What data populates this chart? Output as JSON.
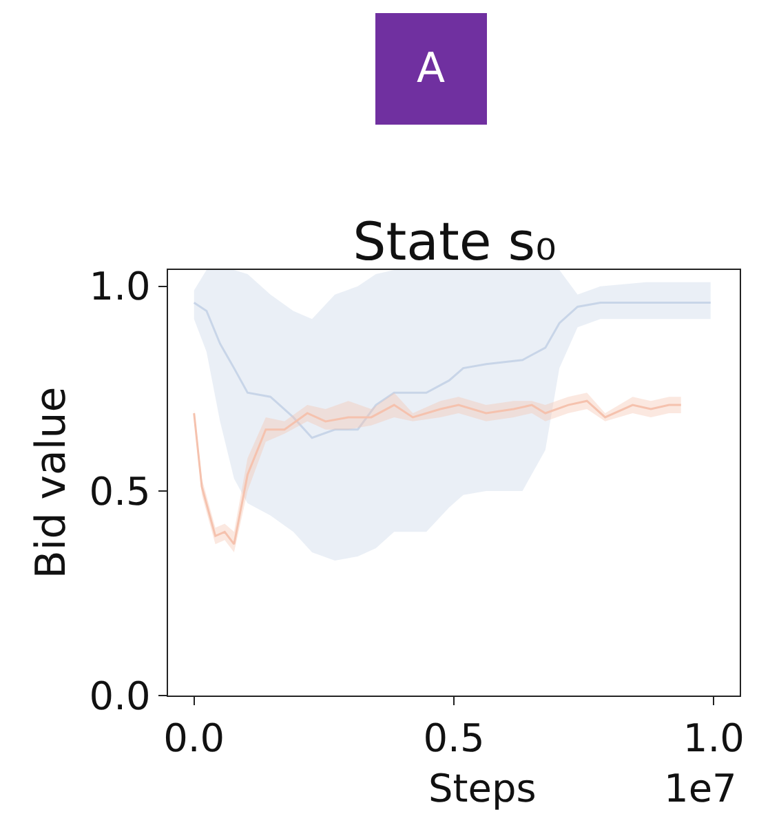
{
  "chart_data": {
    "type": "line",
    "title": "State s₀",
    "xlabel": "Steps",
    "ylabel": "Bid value",
    "annotations": [
      "A",
      "1e7"
    ],
    "xlim": [
      -0.05,
      1.05
    ],
    "ylim": [
      0,
      1.04
    ],
    "xticks": [
      {
        "value": 0,
        "label": "0.0"
      },
      {
        "value": 0.5,
        "label": "0.5"
      },
      {
        "value": 1.0,
        "label": "1.0"
      }
    ],
    "yticks": [
      {
        "value": 0,
        "label": "0.0"
      },
      {
        "value": 0.5,
        "label": "0.5"
      },
      {
        "value": 1.0,
        "label": "1.0"
      }
    ],
    "marker": "none",
    "line_style": "solid",
    "series": [
      {
        "color": "#c8d5e8",
        "x": [
          0,
          0.024,
          0.05,
          0.077,
          0.103,
          0.147,
          0.191,
          0.227,
          0.271,
          0.315,
          0.35,
          0.385,
          0.447,
          0.491,
          0.518,
          0.562,
          0.632,
          0.676,
          0.703,
          0.738,
          0.782,
          0.87,
          0.994
        ],
        "values": [
          0.96,
          0.94,
          0.86,
          0.8,
          0.74,
          0.73,
          0.68,
          0.63,
          0.65,
          0.65,
          0.71,
          0.74,
          0.74,
          0.77,
          0.8,
          0.81,
          0.82,
          0.85,
          0.91,
          0.95,
          0.96,
          0.96,
          0.96
        ],
        "upper": [
          0.99,
          1.04,
          1.04,
          1.04,
          1.03,
          0.98,
          0.94,
          0.92,
          0.98,
          1.0,
          1.03,
          1.04,
          1.04,
          1.04,
          1.04,
          1.04,
          1.04,
          1.04,
          1.04,
          0.98,
          1.0,
          1.01,
          1.01
        ],
        "lower": [
          0.92,
          0.84,
          0.67,
          0.53,
          0.47,
          0.44,
          0.4,
          0.35,
          0.33,
          0.34,
          0.36,
          0.4,
          0.4,
          0.46,
          0.49,
          0.5,
          0.5,
          0.6,
          0.8,
          0.9,
          0.92,
          0.92,
          0.92
        ]
      },
      {
        "color": "#f5c2ae",
        "x": [
          0,
          0.015,
          0.041,
          0.059,
          0.077,
          0.103,
          0.138,
          0.174,
          0.218,
          0.253,
          0.297,
          0.341,
          0.385,
          0.421,
          0.474,
          0.509,
          0.562,
          0.615,
          0.65,
          0.676,
          0.72,
          0.756,
          0.791,
          0.844,
          0.879,
          0.914,
          0.937
        ],
        "values": [
          0.69,
          0.51,
          0.39,
          0.4,
          0.37,
          0.54,
          0.65,
          0.65,
          0.69,
          0.67,
          0.68,
          0.68,
          0.71,
          0.68,
          0.7,
          0.71,
          0.69,
          0.7,
          0.71,
          0.69,
          0.71,
          0.72,
          0.68,
          0.71,
          0.7,
          0.71,
          0.71
        ],
        "upper": [
          0.7,
          0.53,
          0.41,
          0.42,
          0.4,
          0.58,
          0.68,
          0.67,
          0.71,
          0.7,
          0.72,
          0.7,
          0.74,
          0.69,
          0.72,
          0.73,
          0.71,
          0.72,
          0.72,
          0.71,
          0.73,
          0.74,
          0.69,
          0.73,
          0.72,
          0.73,
          0.73
        ],
        "lower": [
          0.68,
          0.49,
          0.37,
          0.38,
          0.35,
          0.5,
          0.62,
          0.64,
          0.67,
          0.65,
          0.65,
          0.66,
          0.68,
          0.67,
          0.68,
          0.69,
          0.67,
          0.68,
          0.69,
          0.67,
          0.69,
          0.7,
          0.67,
          0.69,
          0.68,
          0.69,
          0.69
        ]
      }
    ]
  }
}
